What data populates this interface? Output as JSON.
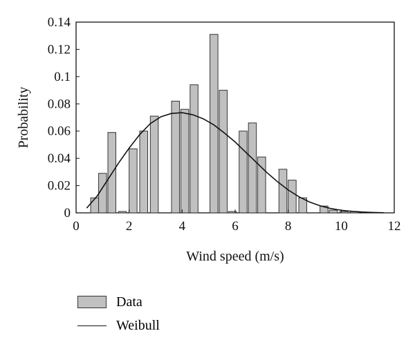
{
  "chart_data": {
    "type": "bar",
    "title": "",
    "xlabel": "Wind speed (m/s)",
    "ylabel": "Probability",
    "xlim": [
      0,
      12
    ],
    "ylim": [
      0,
      0.14
    ],
    "xticks": [
      0,
      2,
      4,
      6,
      8,
      10,
      12
    ],
    "yticks": [
      0,
      0.02,
      0.04,
      0.06,
      0.08,
      0.1,
      0.12,
      0.14
    ],
    "xtick_labels": [
      "0",
      "2",
      "4",
      "6",
      "8",
      "10",
      "12"
    ],
    "ytick_labels": [
      "0",
      "0.02",
      "0.04",
      "0.06",
      "0.08",
      "0.1",
      "0.12",
      "0.14"
    ],
    "bar_width": 0.3,
    "bar_color": "#c0c0c0",
    "series": [
      {
        "name": "Data",
        "type": "bar",
        "x": [
          0.7,
          1.0,
          1.35,
          1.75,
          2.15,
          2.55,
          2.95,
          3.35,
          3.75,
          4.1,
          4.45,
          4.85,
          5.2,
          5.55,
          5.9,
          6.3,
          6.65,
          7.0,
          7.4,
          7.8,
          8.15,
          8.55,
          8.95,
          9.35,
          9.7,
          10.1,
          10.5,
          10.85,
          11.25
        ],
        "y": [
          0.011,
          0.029,
          0.059,
          0.001,
          0.047,
          0.06,
          0.071,
          0.0,
          0.082,
          0.076,
          0.094,
          0.0,
          0.131,
          0.09,
          0.001,
          0.06,
          0.066,
          0.041,
          0.0,
          0.032,
          0.024,
          0.011,
          0.0,
          0.005,
          0.002,
          0.001,
          0.001,
          0.0,
          0.0
        ]
      },
      {
        "name": "Weibull",
        "type": "line",
        "x": [
          0.4,
          0.8,
          1.2,
          1.6,
          2.0,
          2.4,
          2.8,
          3.2,
          3.6,
          4.0,
          4.4,
          4.8,
          5.2,
          5.6,
          6.0,
          6.4,
          6.8,
          7.2,
          7.6,
          8.0,
          8.4,
          8.8,
          9.2,
          9.6,
          10.0,
          10.4,
          10.8,
          11.2,
          11.6
        ],
        "y": [
          0.0035,
          0.0125,
          0.0245,
          0.0365,
          0.0475,
          0.0575,
          0.0655,
          0.0705,
          0.073,
          0.0735,
          0.072,
          0.069,
          0.0645,
          0.0585,
          0.052,
          0.0445,
          0.037,
          0.0295,
          0.0228,
          0.0168,
          0.0119,
          0.008,
          0.0052,
          0.0032,
          0.0019,
          0.0011,
          0.0006,
          0.0003,
          0.0001
        ]
      }
    ],
    "legend": {
      "placement": "bottom-left",
      "entries": [
        {
          "label": "Data",
          "marker": "bar"
        },
        {
          "label": "Weibull",
          "marker": "line"
        }
      ]
    },
    "grid": false
  }
}
